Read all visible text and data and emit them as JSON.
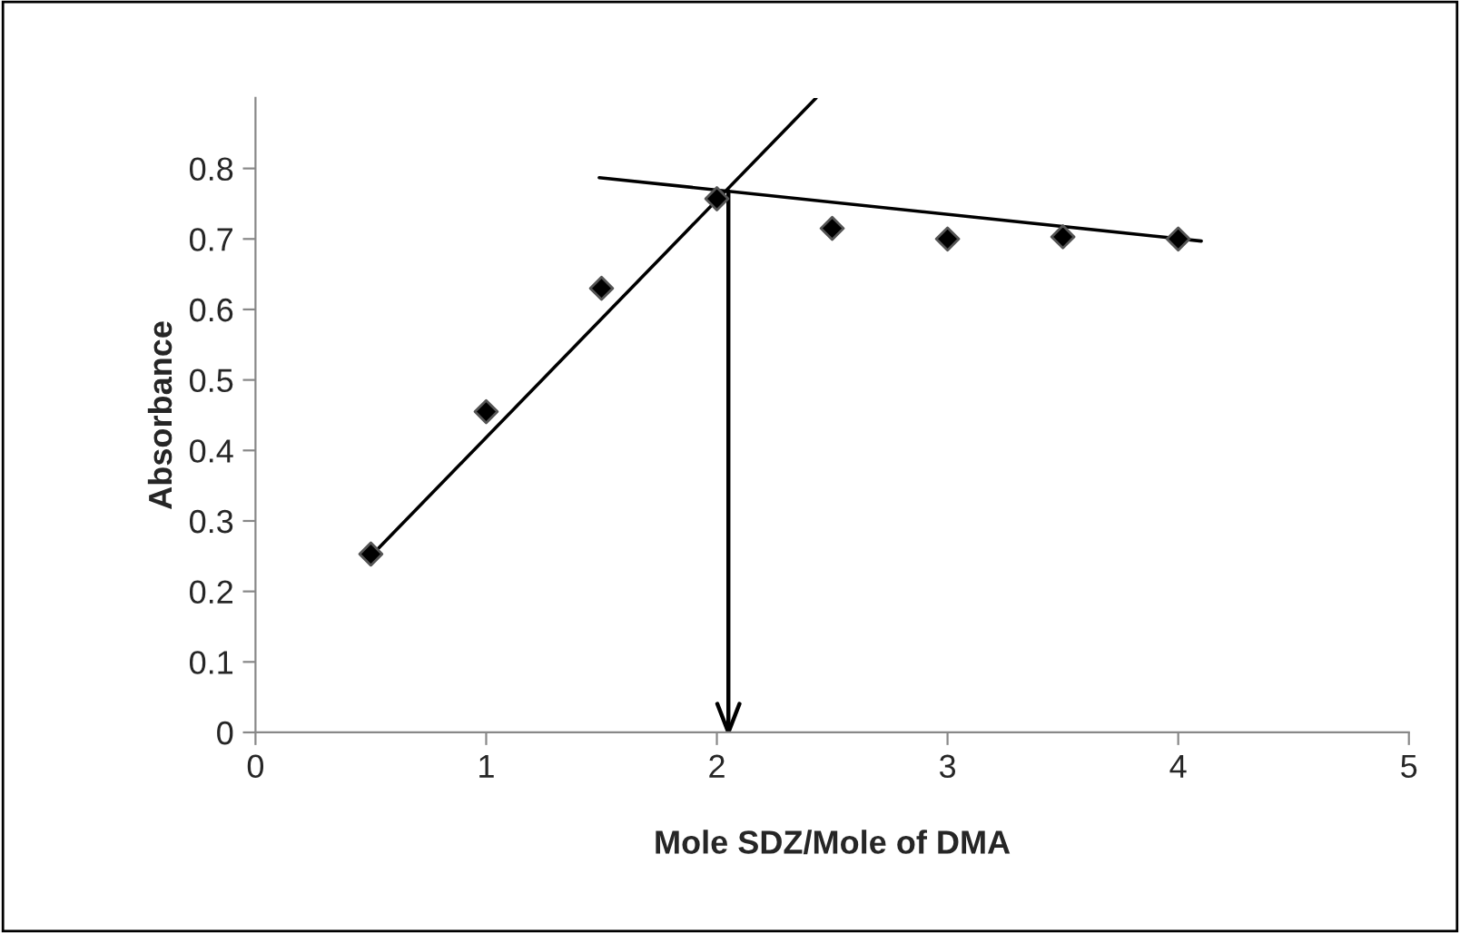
{
  "chart_data": {
    "type": "scatter",
    "xlabel": "Mole SDZ/Mole of DMA",
    "ylabel": "Absorbance",
    "xlim": [
      0,
      5
    ],
    "xticks": [
      0,
      1,
      2,
      3,
      4,
      5
    ],
    "ylim": [
      0,
      0.9
    ],
    "yticks": [
      0,
      0.1,
      0.2,
      0.3,
      0.4,
      0.5,
      0.6,
      0.7,
      0.8
    ],
    "grid": false,
    "legend": false,
    "series": [
      {
        "color": "#000000",
        "marker": "diamond",
        "x": [
          0.5,
          1,
          1.5,
          2,
          2.5,
          3,
          3.5,
          4
        ],
        "values": [
          0.253,
          0.455,
          0.63,
          0.757,
          0.715,
          0.7,
          0.703,
          0.7
        ]
      },
      {
        "type": "line",
        "marker": "none",
        "color": "#000000",
        "x": [
          0.5,
          2.43
        ],
        "values": [
          0.25,
          0.9
        ]
      },
      {
        "type": "line",
        "marker": "none",
        "color": "#000000",
        "x": [
          1.49,
          4.1
        ],
        "values": [
          0.787,
          0.697
        ]
      }
    ],
    "ref_lines": [
      {
        "axis": "x",
        "value": 2.05,
        "color": "#000000"
      }
    ]
  }
}
